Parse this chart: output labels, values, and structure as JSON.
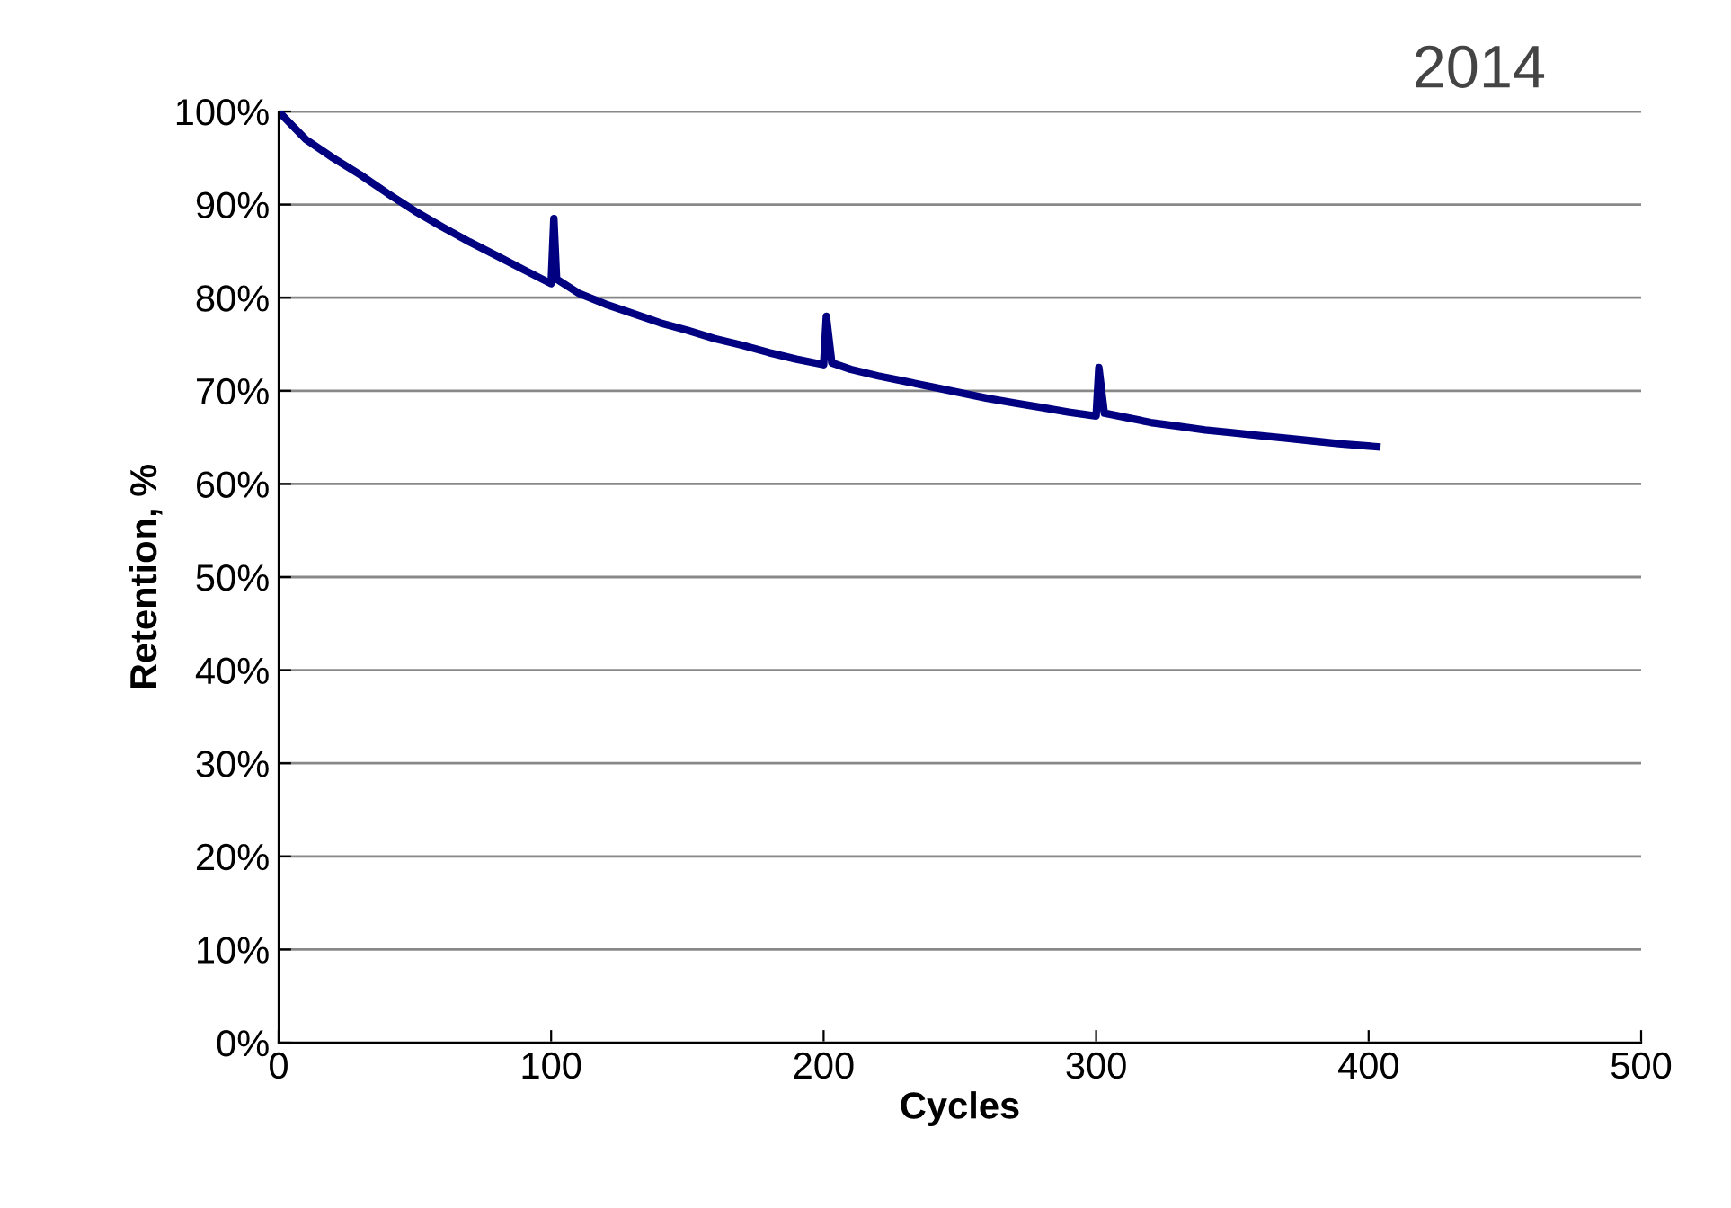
{
  "chart_data": {
    "type": "line",
    "xlabel": "Cycles",
    "ylabel": "Retention, %",
    "annotations": [
      "2014"
    ],
    "x": [
      0,
      5,
      10,
      20,
      30,
      40,
      50,
      60,
      70,
      80,
      90,
      100,
      101,
      102,
      110,
      120,
      130,
      140,
      150,
      160,
      170,
      180,
      190,
      200,
      201,
      203,
      210,
      220,
      230,
      240,
      250,
      260,
      270,
      280,
      290,
      300,
      301,
      303,
      310,
      320,
      330,
      340,
      350,
      360,
      370,
      380,
      390,
      403
    ],
    "series": [
      {
        "color": "#000080",
        "values": [
          100,
          98.5,
          97,
          95,
          93.2,
          91.2,
          89.3,
          87.6,
          86,
          84.5,
          83,
          81.5,
          88.5,
          82,
          80.5,
          79.3,
          78.3,
          77.3,
          76.5,
          75.6,
          74.9,
          74.1,
          73.4,
          72.8,
          78,
          73,
          72.3,
          71.6,
          71,
          70.4,
          69.8,
          69.2,
          68.7,
          68.2,
          67.7,
          67.3,
          72.5,
          67.6,
          67.2,
          66.6,
          66.2,
          65.8,
          65.5,
          65.2,
          64.9,
          64.6,
          64.3,
          64
        ]
      }
    ],
    "xlim": [
      0,
      500
    ],
    "xticks": [
      0,
      100,
      200,
      300,
      400,
      500
    ],
    "ylim": [
      0,
      100
    ],
    "yticks": [
      {
        "value": 0,
        "label": "0%"
      },
      {
        "value": 10,
        "label": "10%"
      },
      {
        "value": 20,
        "label": "20%"
      },
      {
        "value": 30,
        "label": "30%"
      },
      {
        "value": 40,
        "label": "40%"
      },
      {
        "value": 50,
        "label": "50%"
      },
      {
        "value": 60,
        "label": "60%"
      },
      {
        "value": 70,
        "label": "70%"
      },
      {
        "value": 80,
        "label": "80%"
      },
      {
        "value": 90,
        "label": "90%"
      },
      {
        "value": 100,
        "label": "100%"
      }
    ],
    "grid": "y",
    "legend": false,
    "marker": "none",
    "line_style": "solid"
  }
}
